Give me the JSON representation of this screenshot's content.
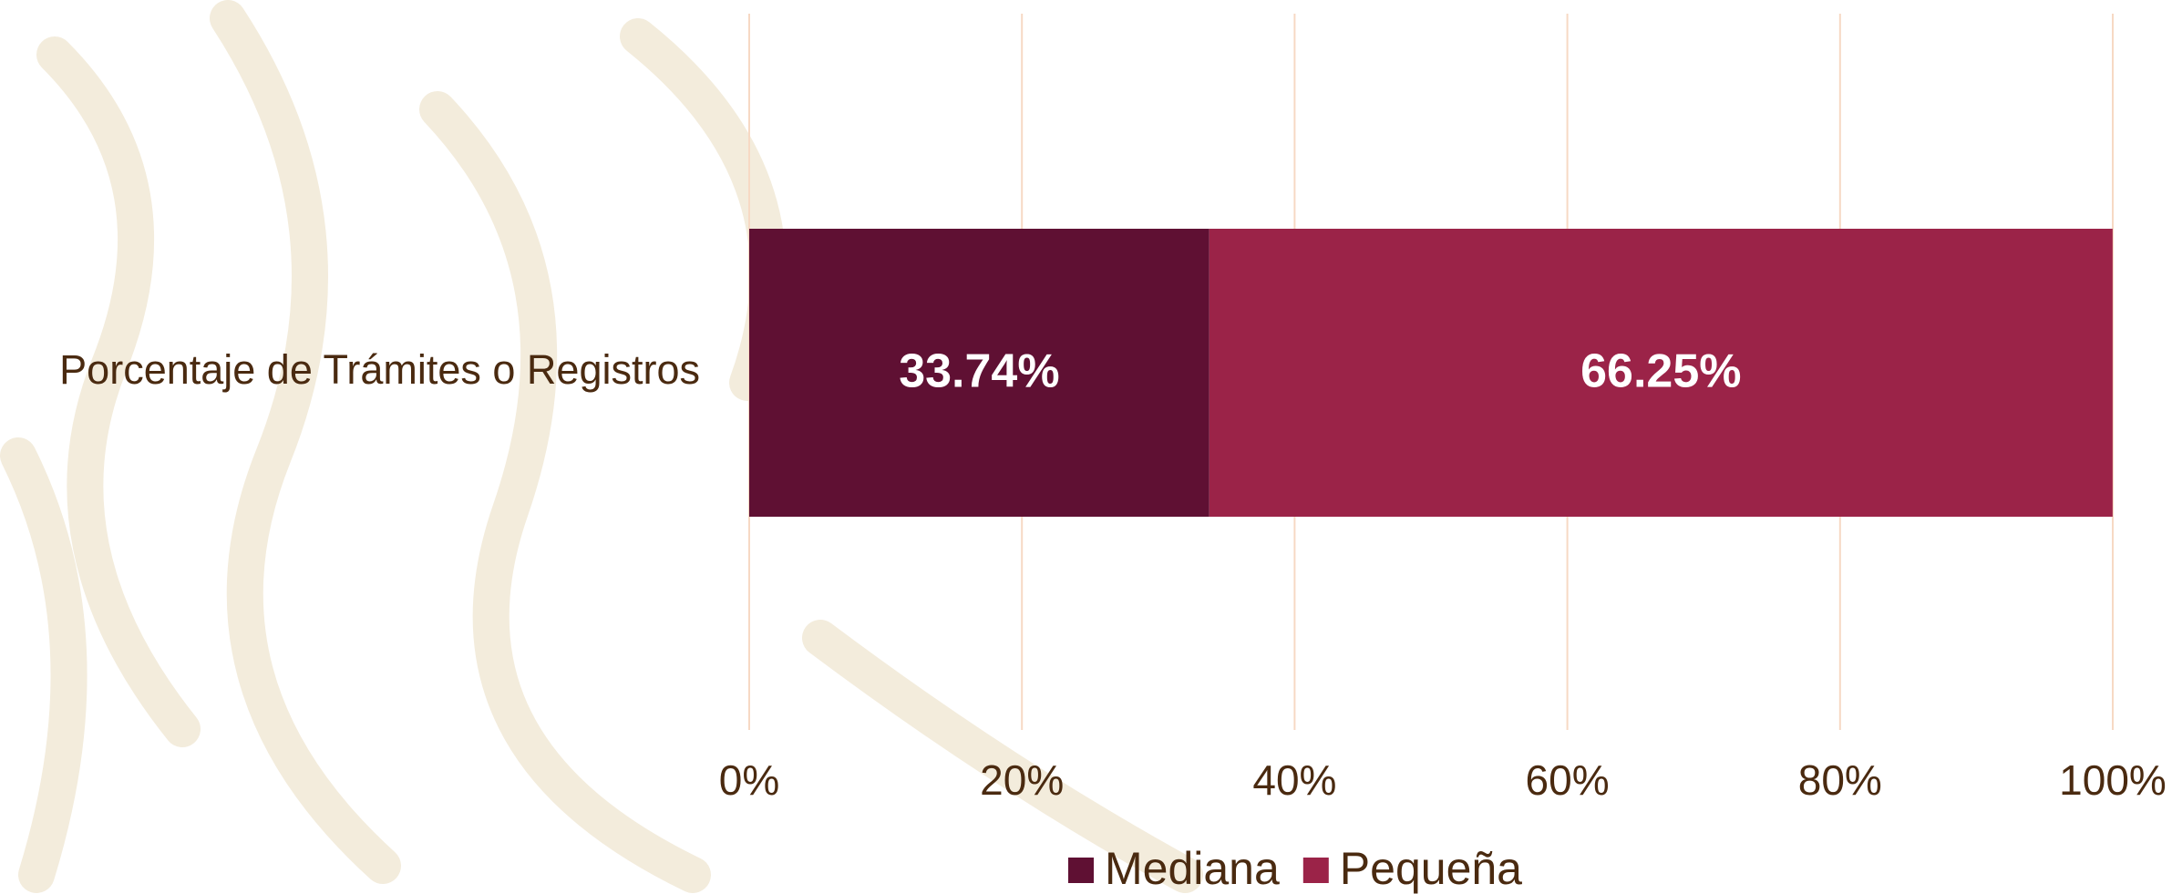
{
  "chart_data": {
    "type": "stacked-bar-horizontal",
    "categories": [
      "Porcentaje de Trámites o Registros"
    ],
    "series": [
      {
        "name": "Mediana",
        "color": "#5f1033",
        "values": [
          33.74
        ],
        "value_labels": [
          "33.74%"
        ]
      },
      {
        "name": "Pequeña",
        "color": "#9b2348",
        "values": [
          66.25
        ],
        "value_labels": [
          "66.25%"
        ]
      }
    ],
    "xlim": [
      0,
      100
    ],
    "xticks": [
      {
        "value": 0,
        "label": "0%"
      },
      {
        "value": 20,
        "label": "20%"
      },
      {
        "value": 40,
        "label": "40%"
      },
      {
        "value": 60,
        "label": "60%"
      },
      {
        "value": 80,
        "label": "80%"
      },
      {
        "value": 100,
        "label": "100%"
      }
    ],
    "grid": true,
    "legend": "bottom"
  }
}
